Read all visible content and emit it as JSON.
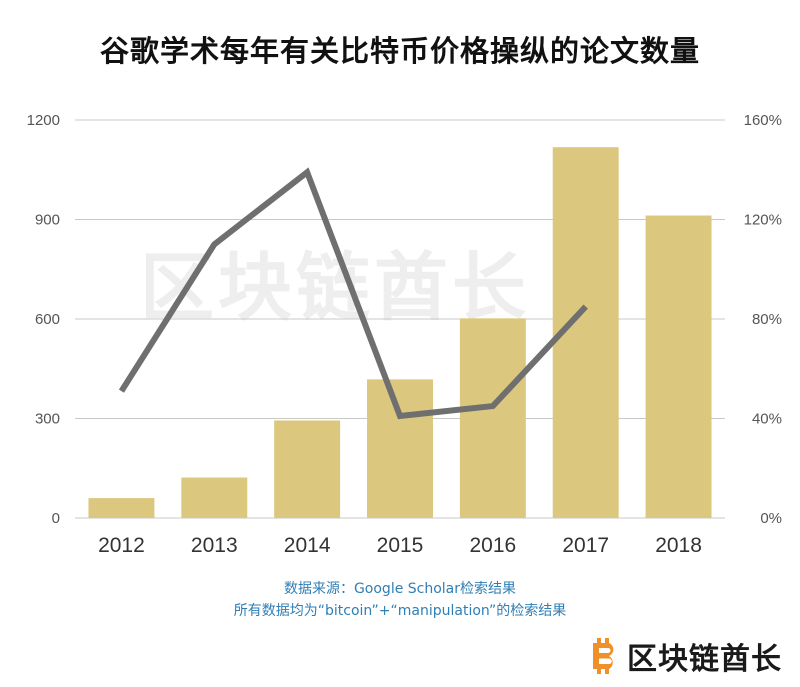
{
  "colors": {
    "bar": "#dcc77e",
    "line": "#6f6f6f",
    "grid": "#c8c8c8",
    "tick": "#555555",
    "category": "#333333",
    "source": "#2f7fb5",
    "logo_orange": "#f0902a"
  },
  "brand": {
    "name": "区块链酋长",
    "watermark": "区块链酋长",
    "icon": "bitcoin-b-icon"
  },
  "source_line1": "数据来源：Google Scholar检索结果",
  "source_line2": "所有数据均为“bitcoin”+“manipulation”的检索结果",
  "chart_data": {
    "type": "bar",
    "title": "谷歌学术每年有关比特币价格操纵的论文数量",
    "categories": [
      "2012",
      "2013",
      "2014",
      "2015",
      "2016",
      "2017",
      "2018"
    ],
    "series": [
      {
        "type": "bar",
        "axis": "left",
        "values": [
          60,
          122,
          294,
          418,
          602,
          1118,
          912
        ]
      },
      {
        "type": "line",
        "axis": "right",
        "unit": "%",
        "values": [
          51,
          110,
          139,
          41,
          45,
          85,
          null
        ]
      }
    ],
    "left_axis": {
      "ylim": [
        0,
        1200
      ],
      "ticks": [
        0,
        300,
        600,
        900,
        1200
      ],
      "tick_labels": [
        "0",
        "300",
        "600",
        "900",
        "1200"
      ]
    },
    "right_axis": {
      "ylim": [
        0,
        160
      ],
      "ticks": [
        0,
        40,
        80,
        120,
        160
      ],
      "tick_labels": [
        "0%",
        "40%",
        "80%",
        "120%",
        "160%"
      ]
    },
    "grid": true,
    "legend": "none"
  }
}
